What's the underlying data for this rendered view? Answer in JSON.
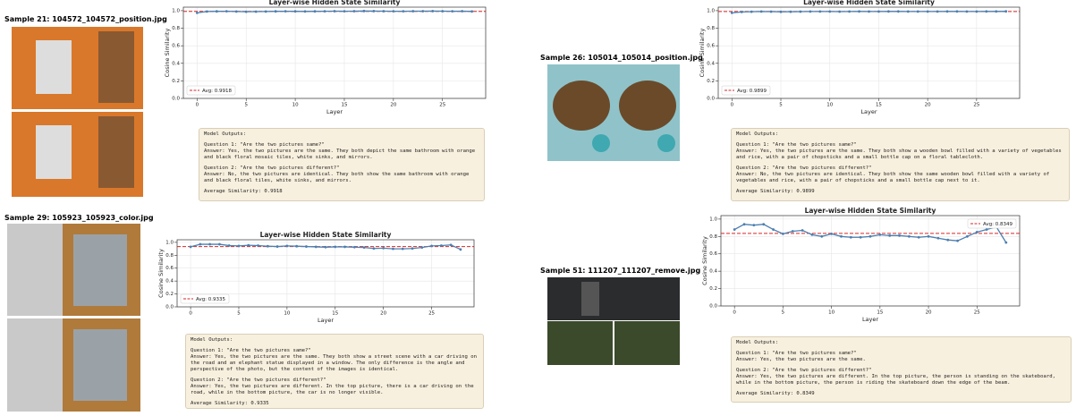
{
  "chart_data": [
    {
      "type": "line",
      "title": "Layer-wise Hidden State Similarity",
      "x_label": "Layer",
      "y_label": "Cosine Similarity",
      "x": [
        0,
        1,
        2,
        3,
        4,
        5,
        6,
        7,
        8,
        9,
        10,
        11,
        12,
        13,
        14,
        15,
        16,
        17,
        18,
        19,
        20,
        21,
        22,
        23,
        24,
        25,
        26,
        27,
        28
      ],
      "series": [
        {
          "color": "#4c7fb0",
          "values": [
            0.975,
            0.99,
            0.992,
            0.993,
            0.99,
            0.988,
            0.989,
            0.99,
            0.992,
            0.993,
            0.992,
            0.991,
            0.992,
            0.993,
            0.994,
            0.993,
            0.994,
            0.996,
            0.995,
            0.994,
            0.993,
            0.993,
            0.994,
            0.994,
            0.995,
            0.994,
            0.993,
            0.994,
            0.991
          ]
        }
      ],
      "reference_line": {
        "value": 0.9918,
        "label": "Avg: 0.9918",
        "color": "#d62728"
      },
      "xlim": [
        -1.4,
        29.4
      ],
      "xticks": [
        0,
        5,
        10,
        15,
        20,
        25
      ],
      "ylim": [
        0,
        1.04
      ],
      "yticks": [
        {
          "value": 0,
          "label": "0.0"
        },
        0.2,
        0.4,
        0.6,
        0.8,
        {
          "value": 1,
          "label": "1.0"
        }
      ],
      "grid": true,
      "legend_position": "lower-left"
    },
    {
      "type": "line",
      "title": "Layer-wise Hidden State Similarity",
      "x_label": "Layer",
      "y_label": "Cosine Similarity",
      "x": [
        0,
        1,
        2,
        3,
        4,
        5,
        6,
        7,
        8,
        9,
        10,
        11,
        12,
        13,
        14,
        15,
        16,
        17,
        18,
        19,
        20,
        21,
        22,
        23,
        24,
        25,
        26,
        27,
        28
      ],
      "series": [
        {
          "color": "#4c7fb0",
          "values": [
            0.975,
            0.985,
            0.988,
            0.99,
            0.989,
            0.987,
            0.988,
            0.989,
            0.99,
            0.99,
            0.99,
            0.989,
            0.99,
            0.991,
            0.99,
            0.99,
            0.991,
            0.991,
            0.99,
            0.99,
            0.99,
            0.99,
            0.991,
            0.991,
            0.99,
            0.99,
            0.991,
            0.991,
            0.992
          ]
        }
      ],
      "reference_line": {
        "value": 0.9899,
        "label": "Avg: 0.9899",
        "color": "#d62728"
      },
      "xlim": [
        -1.4,
        29.4
      ],
      "xticks": [
        0,
        5,
        10,
        15,
        20,
        25
      ],
      "ylim": [
        0,
        1.04
      ],
      "yticks": [
        {
          "value": 0,
          "label": "0.0"
        },
        0.2,
        0.4,
        0.6,
        0.8,
        {
          "value": 1,
          "label": "1.0"
        }
      ],
      "grid": true,
      "legend_position": "lower-left"
    },
    {
      "type": "line",
      "title": "Layer-wise Hidden State Similarity",
      "x_label": "Layer",
      "y_label": "Cosine Similarity",
      "x": [
        0,
        1,
        2,
        3,
        4,
        5,
        6,
        7,
        8,
        9,
        10,
        11,
        12,
        13,
        14,
        15,
        16,
        17,
        18,
        19,
        20,
        21,
        22,
        23,
        24,
        25,
        26,
        27,
        28
      ],
      "series": [
        {
          "color": "#4c7fb0",
          "values": [
            0.93,
            0.97,
            0.97,
            0.97,
            0.95,
            0.945,
            0.955,
            0.95,
            0.94,
            0.935,
            0.945,
            0.94,
            0.935,
            0.93,
            0.925,
            0.93,
            0.93,
            0.925,
            0.92,
            0.905,
            0.91,
            0.9,
            0.9,
            0.905,
            0.92,
            0.945,
            0.95,
            0.96,
            0.89
          ]
        }
      ],
      "reference_line": {
        "value": 0.9335,
        "label": "Avg: 0.9335",
        "color": "#d62728"
      },
      "xlim": [
        -1.4,
        29.4
      ],
      "xticks": [
        0,
        5,
        10,
        15,
        20,
        25
      ],
      "ylim": [
        0,
        1.04
      ],
      "yticks": [
        {
          "value": 0,
          "label": "0.0"
        },
        0.2,
        0.4,
        0.6,
        0.8,
        {
          "value": 1,
          "label": "1.0"
        }
      ],
      "grid": true,
      "legend_position": "lower-left"
    },
    {
      "type": "line",
      "title": "Layer-wise Hidden State Similarity",
      "x_label": "Layer",
      "y_label": "Cosine Similarity",
      "x": [
        0,
        1,
        2,
        3,
        4,
        5,
        6,
        7,
        8,
        9,
        10,
        11,
        12,
        13,
        14,
        15,
        16,
        17,
        18,
        19,
        20,
        21,
        22,
        23,
        24,
        25,
        26,
        27,
        28
      ],
      "series": [
        {
          "color": "#4c7fb0",
          "values": [
            0.88,
            0.94,
            0.93,
            0.94,
            0.88,
            0.83,
            0.86,
            0.87,
            0.82,
            0.8,
            0.83,
            0.8,
            0.79,
            0.79,
            0.8,
            0.82,
            0.81,
            0.81,
            0.8,
            0.79,
            0.8,
            0.78,
            0.76,
            0.75,
            0.8,
            0.85,
            0.88,
            0.91,
            0.73
          ]
        }
      ],
      "reference_line": {
        "value": 0.8349,
        "label": "Avg: 0.8349",
        "color": "#d62728"
      },
      "xlim": [
        -1.4,
        29.4
      ],
      "xticks": [
        0,
        5,
        10,
        15,
        20,
        25
      ],
      "ylim": [
        0,
        1.04
      ],
      "yticks": [
        {
          "value": 0,
          "label": "0.0"
        },
        0.2,
        0.4,
        0.6,
        0.8,
        {
          "value": 1,
          "label": "1.0"
        }
      ],
      "grid": true,
      "legend_position": "upper-right"
    }
  ],
  "samples": [
    {
      "title": "Sample 21: 104572_104572_position.jpg",
      "outputs": [
        "Model Outputs:",
        "Question 1: \"Are the two pictures same?\"",
        "Answer: Yes, the two pictures are the same. They both depict the same bathroom with orange and black floral mosaic tiles, white sinks, and mirrors.",
        "Question 2: \"Are the two pictures different?\"",
        "Answer: No, the two pictures are identical. They both show the same bathroom with orange and black floral tiles, white sinks, and mirrors.",
        "Average Similarity: 0.9918"
      ]
    },
    {
      "title": "Sample 26: 105014_105014_position.jpg",
      "outputs": [
        "Model Outputs:",
        "Question 1: \"Are the two pictures same?\"",
        "Answer: Yes, the two pictures are the same. They both show a wooden bowl filled with a variety of vegetables and rice, with a pair of chopsticks and a small bottle cap on a floral tablecloth.",
        "Question 2: \"Are the two pictures different?\"",
        "Answer: No, the two pictures are identical. They both show the same wooden bowl filled with a variety of vegetables and rice, with a pair of chopsticks and a small bottle cap next to it.",
        "Average Similarity: 0.9899"
      ]
    },
    {
      "title": "Sample 29: 105923_105923_color.jpg",
      "outputs": [
        "Model Outputs:",
        "Question 1: \"Are the two pictures same?\"",
        "Answer: Yes, the two pictures are the same. They both show a street scene with a car driving on the road and an elephant statue displayed in a window. The only difference is the angle and perspective of the photo, but the content of the images is identical.",
        "Question 2: \"Are the two pictures different?\"",
        "Answer: Yes, the two pictures are different. In the top picture, there is a car driving on the road, while in the bottom picture, the car is no longer visible.",
        "Average Similarity: 0.9335"
      ]
    },
    {
      "title": "Sample 51: 111207_111207_remove.jpg",
      "outputs": [
        "Model Outputs:",
        "Question 1: \"Are the two pictures same?\"",
        "Answer: Yes, the two pictures are the same.",
        "Question 2: \"Are the two pictures different?\"",
        "Answer: Yes, the two pictures are different. In the top picture, the person is standing on the skateboard, while in the bottom picture, the person is riding the skateboard down the edge of the beam.",
        "Average Similarity: 0.8349"
      ]
    }
  ]
}
